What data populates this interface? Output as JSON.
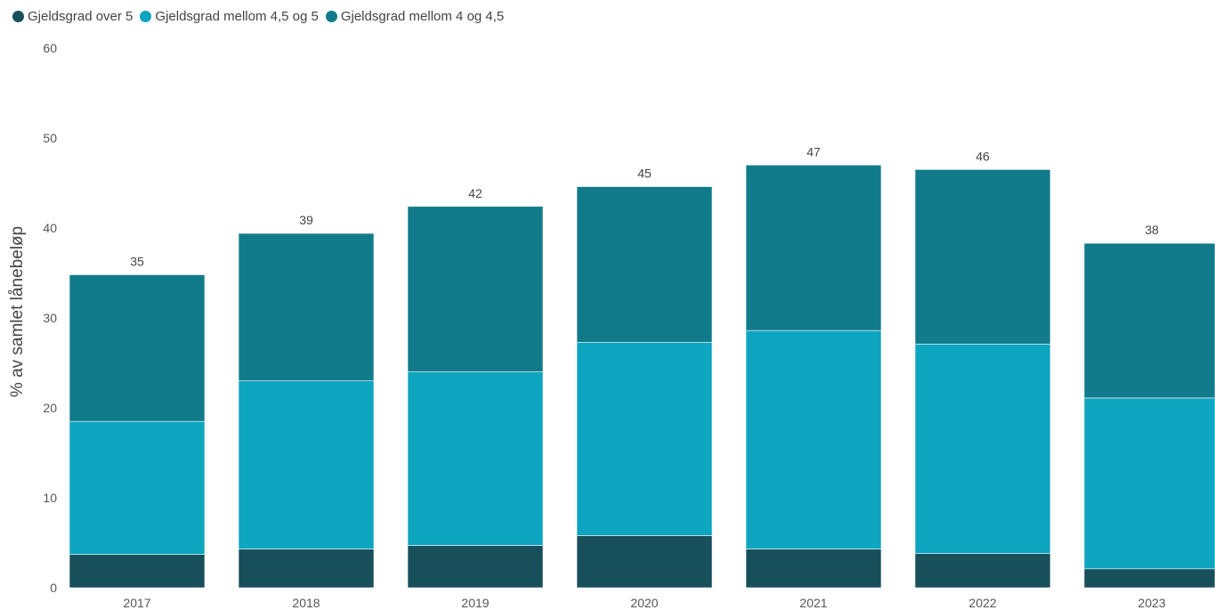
{
  "legend": {
    "items": [
      {
        "label": "Gjeldsgrad over 5",
        "color": "#174f5a"
      },
      {
        "label": "Gjeldsgrad mellom 4,5 og 5",
        "color": "#0ea5c0"
      },
      {
        "label": "Gjeldsgrad mellom 4 og 4,5",
        "color": "#127b8b"
      }
    ]
  },
  "chart_data": {
    "type": "bar",
    "stacked": true,
    "categories": [
      "2017",
      "2018",
      "2019",
      "2020",
      "2021",
      "2022",
      "2023"
    ],
    "series": [
      {
        "name": "Gjeldsgrad over 5",
        "color": "#174f5a",
        "values": [
          3.7,
          4.3,
          4.7,
          5.8,
          4.3,
          3.8,
          2.1
        ]
      },
      {
        "name": "Gjeldsgrad mellom 4,5 og 5",
        "color": "#0ea5c0",
        "values": [
          14.8,
          18.7,
          19.3,
          21.5,
          24.3,
          23.3,
          19.0
        ]
      },
      {
        "name": "Gjeldsgrad mellom 4 og 4,5",
        "color": "#127b8b",
        "values": [
          16.3,
          16.4,
          18.4,
          17.3,
          18.4,
          19.4,
          17.2
        ]
      }
    ],
    "totals": [
      "35",
      "39",
      "42",
      "45",
      "47",
      "46",
      "38"
    ],
    "ylabel": "% av samlet lånebeløp",
    "ylim": [
      0,
      60
    ],
    "yticks": [
      "0",
      "10",
      "20",
      "30",
      "40",
      "50",
      "60"
    ],
    "grid": false,
    "legend_position": "top-left"
  }
}
